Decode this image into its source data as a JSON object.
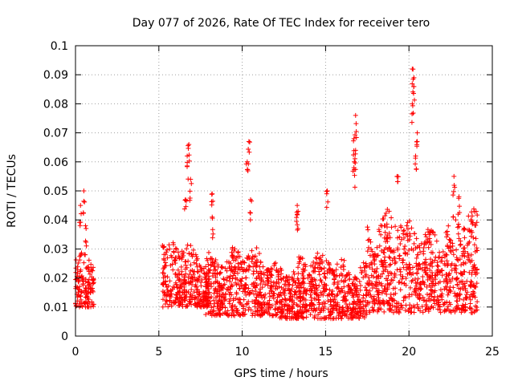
{
  "chart_data": {
    "type": "scatter",
    "title": "Day 077 of 2026, Rate Of TEC Index for receiver tero",
    "xlabel": "GPS time / hours",
    "ylabel": "ROTI / TECUs",
    "xlim": [
      0,
      25
    ],
    "ylim": [
      0,
      0.1
    ],
    "xticks": [
      "0",
      "5",
      "10",
      "15",
      "20",
      "25"
    ],
    "yticks": [
      "0",
      "0.01",
      "0.02",
      "0.03",
      "0.04",
      "0.05",
      "0.06",
      "0.07",
      "0.08",
      "0.09",
      "0.1"
    ],
    "grid": true,
    "marker": "+",
    "color": "#ff0000",
    "clusters": [
      {
        "x_range": [
          0.0,
          1.1
        ],
        "typical_range": [
          0.01,
          0.03
        ],
        "peaks": [
          [
            0.5,
            0.05
          ],
          [
            0.3,
            0.045
          ],
          [
            0.6,
            0.038
          ]
        ]
      },
      {
        "x_range": [
          5.2,
          8.0
        ],
        "typical_range": [
          0.01,
          0.035
        ],
        "peaks": [
          [
            6.8,
            0.066
          ],
          [
            6.7,
            0.062
          ],
          [
            6.9,
            0.054
          ],
          [
            6.6,
            0.047
          ]
        ]
      },
      {
        "x_range": [
          7.8,
          12.0
        ],
        "typical_range": [
          0.007,
          0.032
        ],
        "peaks": [
          [
            8.2,
            0.049
          ],
          [
            8.2,
            0.041
          ],
          [
            10.4,
            0.067
          ],
          [
            10.3,
            0.06
          ],
          [
            10.5,
            0.047
          ]
        ]
      },
      {
        "x_range": [
          12.0,
          17.5
        ],
        "typical_range": [
          0.006,
          0.03
        ],
        "peaks": [
          [
            13.3,
            0.045
          ],
          [
            13.3,
            0.042
          ],
          [
            15.1,
            0.05
          ],
          [
            16.8,
            0.076
          ],
          [
            16.7,
            0.068
          ],
          [
            16.8,
            0.064
          ],
          [
            16.7,
            0.058
          ]
        ]
      },
      {
        "x_range": [
          17.5,
          24.1
        ],
        "typical_range": [
          0.008,
          0.045
        ],
        "peaks": [
          [
            20.2,
            0.092
          ],
          [
            20.3,
            0.089
          ],
          [
            20.2,
            0.08
          ],
          [
            20.5,
            0.07
          ],
          [
            20.4,
            0.062
          ],
          [
            19.3,
            0.055
          ],
          [
            22.7,
            0.055
          ],
          [
            23.0,
            0.048
          ]
        ]
      }
    ]
  }
}
